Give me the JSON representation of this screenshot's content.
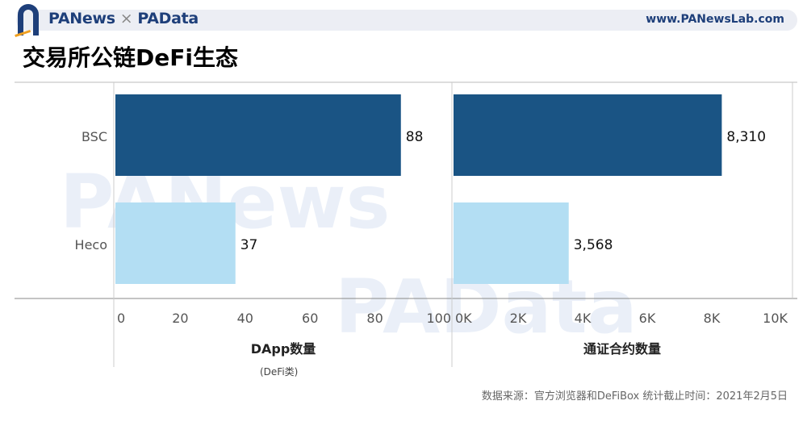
{
  "header": {
    "brand_left": "PANews",
    "brand_sep": "×",
    "brand_right": "PAData",
    "site": "www.PANewsLab.com"
  },
  "title": "交易所公链DeFi生态",
  "colors": {
    "bsc": "#1a5484",
    "heco": "#b3def3",
    "brand": "#1e3f7a"
  },
  "chart_data": [
    {
      "type": "bar",
      "orientation": "horizontal",
      "categories": [
        "BSC",
        "Heco"
      ],
      "values": [
        88,
        37
      ],
      "data_labels": [
        "88",
        "37"
      ],
      "xlabel": "DApp数量",
      "xlabel_note": "(DeFi类)",
      "xlim": [
        0,
        100
      ],
      "xticks": [
        0,
        20,
        40,
        60,
        80,
        100
      ],
      "tick_labels": [
        "0",
        "20",
        "40",
        "60",
        "80",
        "100"
      ]
    },
    {
      "type": "bar",
      "orientation": "horizontal",
      "categories": [
        "BSC",
        "Heco"
      ],
      "values": [
        8310,
        3568
      ],
      "data_labels": [
        "8,310",
        "3,568"
      ],
      "xlabel": "通证合约数量",
      "xlim": [
        0,
        10000
      ],
      "xticks": [
        0,
        2000,
        4000,
        6000,
        8000,
        10000
      ],
      "tick_labels": [
        "0K",
        "2K",
        "4K",
        "6K",
        "8K",
        "10K"
      ]
    }
  ],
  "footer": {
    "source": "数据来源：官方浏览器和DeFiBox  统计截止时间：2021年2月5日"
  }
}
